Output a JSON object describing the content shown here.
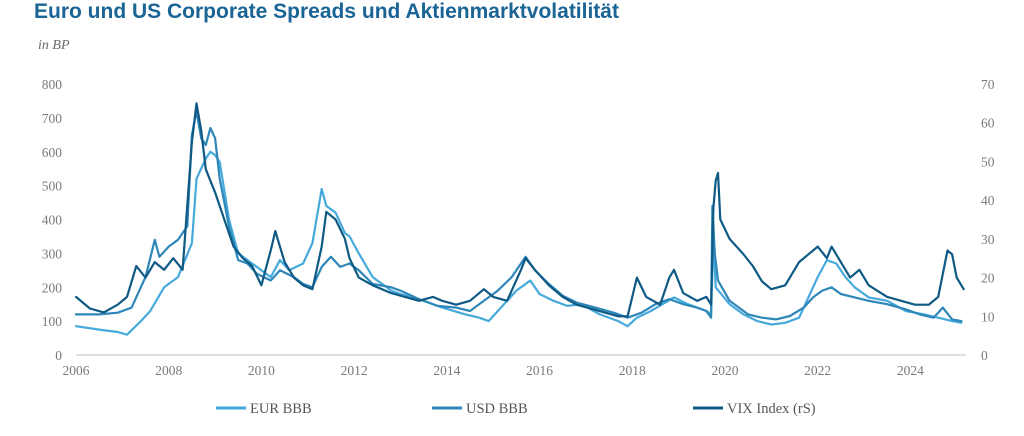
{
  "chart_title": "Euro und US Corporate Spreads und Aktienmarktvolatilität",
  "chart_data": {
    "type": "line",
    "title": "Euro und US Corporate Spreads und Aktienmarktvolatilität",
    "left_axis_unit": "in BP",
    "ylim_left": [
      0,
      800
    ],
    "yticks_left": [
      0,
      100,
      200,
      300,
      400,
      500,
      600,
      700,
      800
    ],
    "ylim_right": [
      0,
      70
    ],
    "yticks_right": [
      0,
      10,
      20,
      30,
      40,
      50,
      60,
      70
    ],
    "xlim": [
      2006,
      2025.2
    ],
    "xticks": [
      2006,
      2008,
      2010,
      2012,
      2014,
      2016,
      2018,
      2020,
      2022,
      2024
    ],
    "grid": false,
    "legend_position": "bottom",
    "series": [
      {
        "name": "EUR BBB",
        "axis": "left",
        "color": "#46a9dc",
        "points": [
          [
            2006.0,
            85
          ],
          [
            2006.5,
            75
          ],
          [
            2006.9,
            68
          ],
          [
            2007.1,
            60
          ],
          [
            2007.4,
            100
          ],
          [
            2007.6,
            130
          ],
          [
            2007.9,
            200
          ],
          [
            2008.2,
            230
          ],
          [
            2008.5,
            330
          ],
          [
            2008.6,
            520
          ],
          [
            2008.8,
            580
          ],
          [
            2008.9,
            600
          ],
          [
            2009.0,
            590
          ],
          [
            2009.1,
            570
          ],
          [
            2009.3,
            400
          ],
          [
            2009.5,
            300
          ],
          [
            2009.7,
            280
          ],
          [
            2009.9,
            260
          ],
          [
            2010.2,
            230
          ],
          [
            2010.4,
            280
          ],
          [
            2010.6,
            250
          ],
          [
            2010.9,
            270
          ],
          [
            2011.1,
            330
          ],
          [
            2011.3,
            490
          ],
          [
            2011.4,
            440
          ],
          [
            2011.6,
            420
          ],
          [
            2011.8,
            360
          ],
          [
            2011.9,
            350
          ],
          [
            2012.1,
            300
          ],
          [
            2012.4,
            230
          ],
          [
            2012.8,
            190
          ],
          [
            2013.0,
            180
          ],
          [
            2013.5,
            160
          ],
          [
            2013.9,
            140
          ],
          [
            2014.4,
            120
          ],
          [
            2014.7,
            110
          ],
          [
            2014.9,
            100
          ],
          [
            2015.1,
            130
          ],
          [
            2015.5,
            190
          ],
          [
            2015.8,
            220
          ],
          [
            2016.0,
            180
          ],
          [
            2016.3,
            160
          ],
          [
            2016.6,
            145
          ],
          [
            2016.9,
            150
          ],
          [
            2017.3,
            120
          ],
          [
            2017.7,
            100
          ],
          [
            2017.9,
            85
          ],
          [
            2018.1,
            110
          ],
          [
            2018.4,
            130
          ],
          [
            2018.9,
            170
          ],
          [
            2019.2,
            150
          ],
          [
            2019.6,
            130
          ],
          [
            2019.7,
            120
          ],
          [
            2019.75,
            350
          ],
          [
            2019.8,
            200
          ],
          [
            2020.1,
            150
          ],
          [
            2020.4,
            120
          ],
          [
            2020.7,
            100
          ],
          [
            2021.0,
            90
          ],
          [
            2021.3,
            95
          ],
          [
            2021.6,
            110
          ],
          [
            2021.8,
            170
          ],
          [
            2022.0,
            230
          ],
          [
            2022.2,
            280
          ],
          [
            2022.4,
            270
          ],
          [
            2022.6,
            230
          ],
          [
            2022.8,
            200
          ],
          [
            2023.1,
            170
          ],
          [
            2023.5,
            160
          ],
          [
            2023.9,
            130
          ],
          [
            2024.3,
            120
          ],
          [
            2024.6,
            110
          ],
          [
            2024.9,
            100
          ],
          [
            2025.1,
            95
          ]
        ]
      },
      {
        "name": "USD BBB",
        "axis": "left",
        "color": "#2e87b8",
        "points": [
          [
            2006.0,
            120
          ],
          [
            2006.5,
            120
          ],
          [
            2006.9,
            125
          ],
          [
            2007.2,
            140
          ],
          [
            2007.5,
            230
          ],
          [
            2007.7,
            340
          ],
          [
            2007.8,
            290
          ],
          [
            2008.0,
            320
          ],
          [
            2008.2,
            340
          ],
          [
            2008.4,
            380
          ],
          [
            2008.5,
            650
          ],
          [
            2008.6,
            720
          ],
          [
            2008.7,
            640
          ],
          [
            2008.8,
            620
          ],
          [
            2008.9,
            670
          ],
          [
            2009.0,
            640
          ],
          [
            2009.1,
            520
          ],
          [
            2009.3,
            380
          ],
          [
            2009.5,
            280
          ],
          [
            2009.7,
            270
          ],
          [
            2009.9,
            240
          ],
          [
            2010.2,
            220
          ],
          [
            2010.4,
            250
          ],
          [
            2010.7,
            230
          ],
          [
            2010.9,
            210
          ],
          [
            2011.1,
            200
          ],
          [
            2011.3,
            260
          ],
          [
            2011.5,
            290
          ],
          [
            2011.7,
            260
          ],
          [
            2011.9,
            270
          ],
          [
            2012.1,
            250
          ],
          [
            2012.4,
            210
          ],
          [
            2012.8,
            200
          ],
          [
            2013.0,
            190
          ],
          [
            2013.4,
            165
          ],
          [
            2013.8,
            145
          ],
          [
            2014.2,
            140
          ],
          [
            2014.5,
            130
          ],
          [
            2014.8,
            160
          ],
          [
            2015.1,
            190
          ],
          [
            2015.4,
            230
          ],
          [
            2015.7,
            290
          ],
          [
            2015.9,
            250
          ],
          [
            2016.2,
            210
          ],
          [
            2016.5,
            175
          ],
          [
            2016.8,
            155
          ],
          [
            2017.2,
            140
          ],
          [
            2017.6,
            125
          ],
          [
            2017.9,
            110
          ],
          [
            2018.2,
            125
          ],
          [
            2018.5,
            150
          ],
          [
            2018.8,
            165
          ],
          [
            2019.1,
            150
          ],
          [
            2019.4,
            140
          ],
          [
            2019.6,
            130
          ],
          [
            2019.7,
            110
          ],
          [
            2019.73,
            440
          ],
          [
            2019.78,
            300
          ],
          [
            2019.85,
            220
          ],
          [
            2020.1,
            160
          ],
          [
            2020.5,
            120
          ],
          [
            2020.8,
            110
          ],
          [
            2021.1,
            105
          ],
          [
            2021.4,
            115
          ],
          [
            2021.7,
            140
          ],
          [
            2021.9,
            170
          ],
          [
            2022.1,
            190
          ],
          [
            2022.3,
            200
          ],
          [
            2022.5,
            180
          ],
          [
            2022.8,
            170
          ],
          [
            2023.1,
            160
          ],
          [
            2023.5,
            150
          ],
          [
            2023.9,
            135
          ],
          [
            2024.2,
            120
          ],
          [
            2024.5,
            110
          ],
          [
            2024.7,
            140
          ],
          [
            2024.9,
            105
          ],
          [
            2025.1,
            100
          ]
        ]
      },
      {
        "name": "VIX Index (rS)",
        "axis": "right",
        "color": "#0e5a85",
        "points": [
          [
            2006.0,
            15
          ],
          [
            2006.3,
            12
          ],
          [
            2006.6,
            11
          ],
          [
            2006.9,
            13
          ],
          [
            2007.1,
            15
          ],
          [
            2007.3,
            23
          ],
          [
            2007.5,
            20
          ],
          [
            2007.7,
            24
          ],
          [
            2007.9,
            22
          ],
          [
            2008.1,
            25
          ],
          [
            2008.3,
            22
          ],
          [
            2008.5,
            55
          ],
          [
            2008.6,
            65
          ],
          [
            2008.7,
            58
          ],
          [
            2008.8,
            48
          ],
          [
            2008.9,
            45
          ],
          [
            2009.0,
            42
          ],
          [
            2009.2,
            35
          ],
          [
            2009.4,
            28
          ],
          [
            2009.6,
            25
          ],
          [
            2009.8,
            23
          ],
          [
            2010.0,
            18
          ],
          [
            2010.2,
            27
          ],
          [
            2010.3,
            32
          ],
          [
            2010.5,
            24
          ],
          [
            2010.7,
            20
          ],
          [
            2010.9,
            18
          ],
          [
            2011.1,
            17
          ],
          [
            2011.3,
            28
          ],
          [
            2011.4,
            37
          ],
          [
            2011.6,
            35
          ],
          [
            2011.8,
            30
          ],
          [
            2011.9,
            25
          ],
          [
            2012.1,
            20
          ],
          [
            2012.4,
            18
          ],
          [
            2012.8,
            16
          ],
          [
            2013.1,
            15
          ],
          [
            2013.4,
            14
          ],
          [
            2013.7,
            15
          ],
          [
            2013.9,
            14
          ],
          [
            2014.2,
            13
          ],
          [
            2014.5,
            14
          ],
          [
            2014.8,
            17
          ],
          [
            2015.0,
            15
          ],
          [
            2015.3,
            14
          ],
          [
            2015.6,
            22
          ],
          [
            2015.7,
            25
          ],
          [
            2015.9,
            22
          ],
          [
            2016.2,
            18
          ],
          [
            2016.5,
            15
          ],
          [
            2016.8,
            13
          ],
          [
            2017.1,
            12
          ],
          [
            2017.4,
            11
          ],
          [
            2017.7,
            10
          ],
          [
            2017.9,
            10
          ],
          [
            2018.1,
            20
          ],
          [
            2018.3,
            15
          ],
          [
            2018.6,
            13
          ],
          [
            2018.8,
            20
          ],
          [
            2018.9,
            22
          ],
          [
            2019.1,
            16
          ],
          [
            2019.4,
            14
          ],
          [
            2019.6,
            15
          ],
          [
            2019.7,
            13
          ],
          [
            2019.75,
            38
          ],
          [
            2019.8,
            45
          ],
          [
            2019.85,
            47
          ],
          [
            2019.9,
            35
          ],
          [
            2020.1,
            30
          ],
          [
            2020.4,
            26
          ],
          [
            2020.6,
            23
          ],
          [
            2020.8,
            19
          ],
          [
            2021.0,
            17
          ],
          [
            2021.3,
            18
          ],
          [
            2021.6,
            24
          ],
          [
            2021.8,
            26
          ],
          [
            2022.0,
            28
          ],
          [
            2022.2,
            25
          ],
          [
            2022.3,
            28
          ],
          [
            2022.5,
            24
          ],
          [
            2022.7,
            20
          ],
          [
            2022.9,
            22
          ],
          [
            2023.1,
            18
          ],
          [
            2023.5,
            15
          ],
          [
            2023.8,
            14
          ],
          [
            2024.1,
            13
          ],
          [
            2024.4,
            13
          ],
          [
            2024.6,
            15
          ],
          [
            2024.8,
            27
          ],
          [
            2024.9,
            26
          ],
          [
            2025.0,
            20
          ],
          [
            2025.15,
            17
          ]
        ]
      }
    ]
  }
}
